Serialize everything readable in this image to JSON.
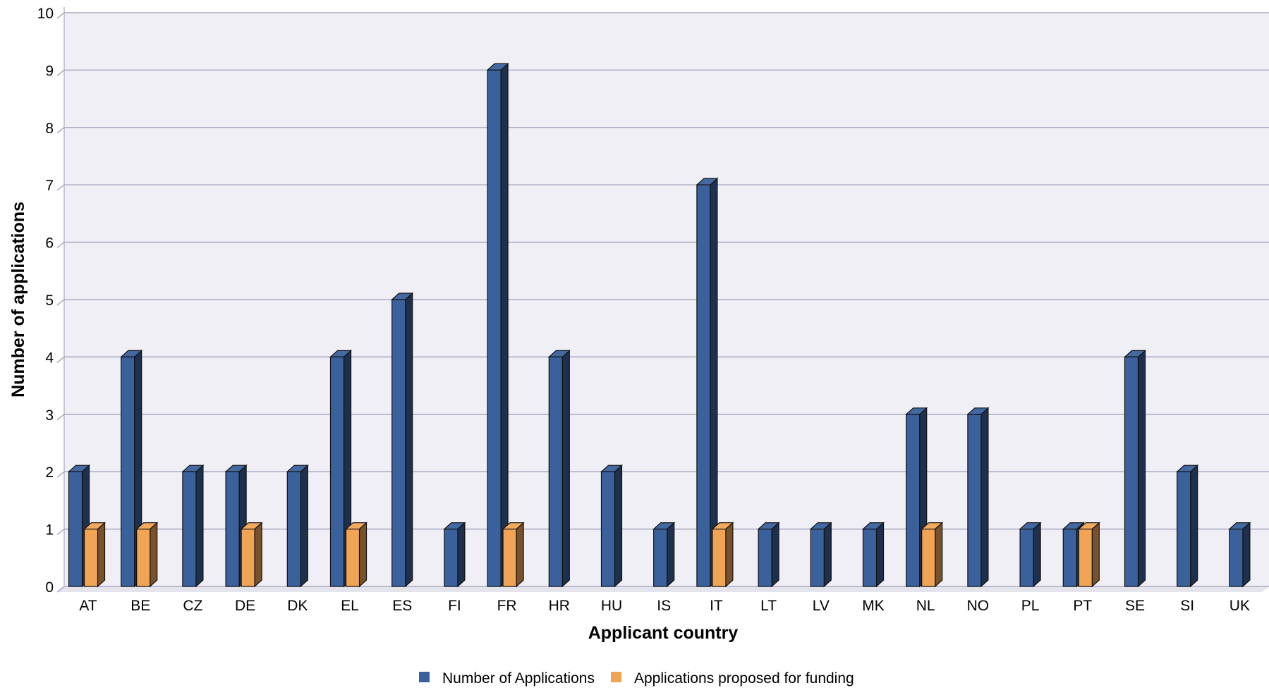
{
  "chart_data": {
    "type": "bar",
    "title": "",
    "xlabel": "Applicant country",
    "ylabel": "Number of applications",
    "ylim": [
      0,
      10
    ],
    "yticks": [
      0,
      1,
      2,
      3,
      4,
      5,
      6,
      7,
      8,
      9,
      10
    ],
    "grid": true,
    "legend_position": "bottom",
    "categories": [
      "AT",
      "BE",
      "CZ",
      "DE",
      "DK",
      "EL",
      "ES",
      "FI",
      "FR",
      "HR",
      "HU",
      "IS",
      "IT",
      "LT",
      "LV",
      "MK",
      "NL",
      "NO",
      "PL",
      "PT",
      "SE",
      "SI",
      "UK"
    ],
    "series": [
      {
        "name": "Number of Applications",
        "color": "#3a619c",
        "values": [
          2,
          4,
          2,
          2,
          2,
          4,
          5,
          1,
          9,
          4,
          2,
          1,
          7,
          1,
          1,
          1,
          3,
          3,
          1,
          1,
          4,
          2,
          1
        ]
      },
      {
        "name": "Applications proposed for funding",
        "color": "#f2a455",
        "values": [
          1,
          1,
          0,
          1,
          0,
          1,
          0,
          0,
          1,
          0,
          0,
          0,
          1,
          0,
          0,
          0,
          1,
          0,
          0,
          1,
          0,
          0,
          0
        ]
      }
    ]
  }
}
